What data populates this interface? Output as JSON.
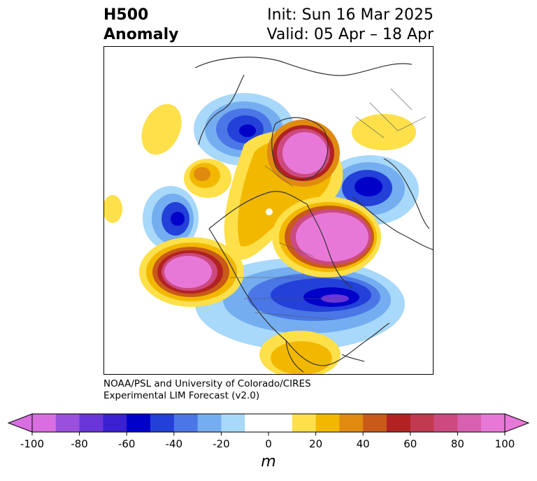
{
  "title": {
    "left_line1": "H500",
    "left_line2": "Anomaly",
    "right_line1": "Init: Sun 16 Mar 2025",
    "right_line2": "Valid: 05 Apr – 18 Apr"
  },
  "credit": {
    "line1": "NOAA/PSL and University of Colorado/CIRES",
    "line2": "Experimental LIM Forecast (v2.0)"
  },
  "colorbar": {
    "label": "m",
    "ticks": [
      "-100",
      "-80",
      "-60",
      "-40",
      "-20",
      "0",
      "20",
      "40",
      "60",
      "80",
      "100"
    ],
    "colors": [
      "#d86ee0",
      "#9b50dc",
      "#6a35d8",
      "#3a20d0",
      "#0000c8",
      "#2340d8",
      "#4a76e6",
      "#74aef0",
      "#a8d8fa",
      "#ffffff",
      "#ffffff",
      "#fde04a",
      "#f2b800",
      "#e08a10",
      "#c85a1a",
      "#b22222",
      "#c23a50",
      "#cc4a80",
      "#d860b0",
      "#e878d8"
    ]
  },
  "colors": {
    "high_center": "#e878d8",
    "low_center": "#0000c8"
  }
}
